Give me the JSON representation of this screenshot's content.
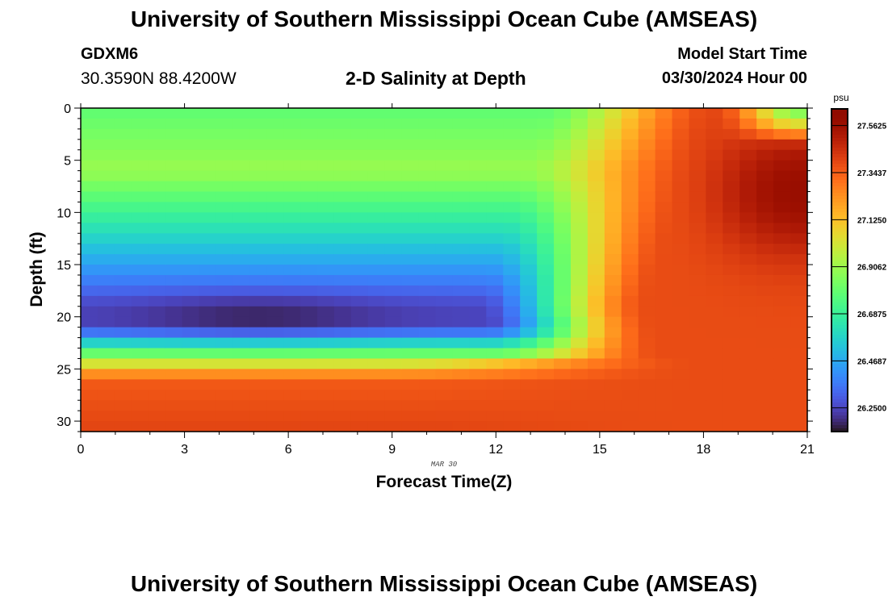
{
  "header": {
    "title": "University of Southern Mississippi Ocean Cube (AMSEAS)",
    "station": "GDXM6",
    "coords": "30.3590N  88.4200W",
    "subtitle": "2-D Salinity at Depth",
    "model_start_label": "Model Start Time",
    "model_start_date": "03/30/2024 Hour 00"
  },
  "footer": {
    "title": "University of Southern Mississippi Ocean Cube (AMSEAS)"
  },
  "colors": {
    "low": "#30123b",
    "high": "#7a0403"
  },
  "chart_data": {
    "type": "heatmap",
    "title": "2-D Salinity at Depth",
    "xlabel": "Forecast Time(Z)",
    "ylabel": "Depth (ft)",
    "date_label": "MAR 30",
    "x_ticks": [
      "0",
      "3",
      "6",
      "9",
      "12",
      "15",
      "18",
      "21"
    ],
    "y_ticks": [
      "0",
      "5",
      "10",
      "15",
      "20",
      "25",
      "30"
    ],
    "xlim": [
      0,
      21
    ],
    "ylim": [
      0,
      31
    ],
    "colorbar": {
      "unit": "psu",
      "min": 26.14,
      "max": 27.64,
      "tick_labels": [
        "27.5625",
        "27.3437",
        "27.1250",
        "26.9062",
        "26.6875",
        "26.4687",
        "26.2500"
      ],
      "tick_values": [
        27.5625,
        27.34375,
        27.125,
        26.90625,
        26.6875,
        26.46875,
        26.25
      ]
    },
    "field_description": "Salinity low (~26.2 psu) at 19-21 ft depth during hours 0-11, rising to 27.3 psu below 25 ft; after hour 15 entire column saturates to ~27.4-27.6 psu; hour 21 near surface shows sharp drop."
  }
}
